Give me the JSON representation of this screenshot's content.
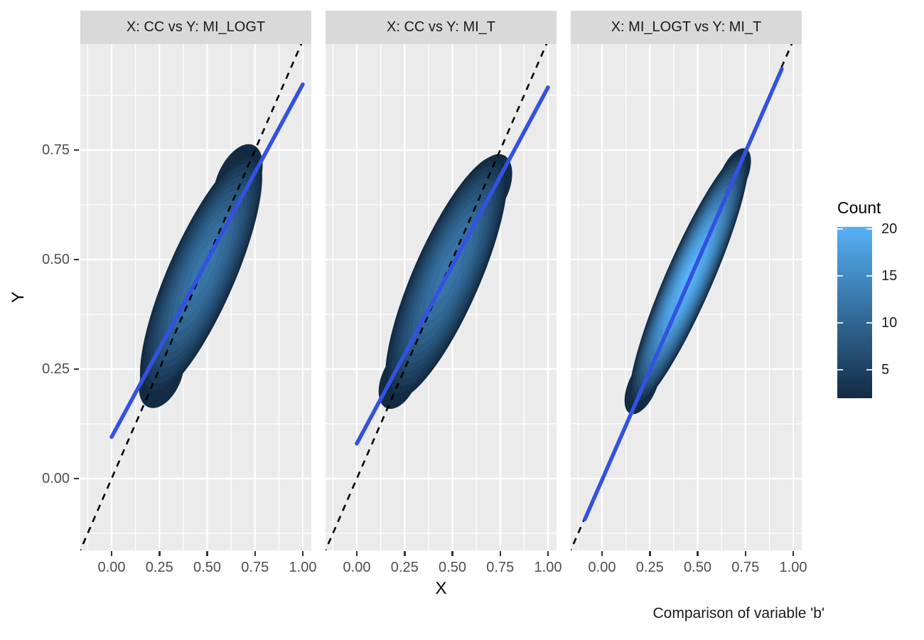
{
  "figure": {
    "background": "#FFFFFF"
  },
  "facets": [
    {
      "title": "X: CC vs Y: MI_LOGT"
    },
    {
      "title": "X: CC vs Y: MI_T"
    },
    {
      "title": "X: MI_LOGT vs Y: MI_T"
    }
  ],
  "axes": {
    "x_label": "X",
    "y_label": "Y",
    "x_tick_labels": [
      "0.00",
      "0.25",
      "0.50",
      "0.75",
      "1.00"
    ],
    "y_tick_labels": [
      "0.00",
      "0.25",
      "0.50",
      "0.75"
    ]
  },
  "legend": {
    "title": "Count",
    "tick_labels": [
      "5",
      "10",
      "15",
      "20"
    ]
  },
  "caption": "Comparison of variable 'b'",
  "style": {
    "panel_bg": "#EBEBEB",
    "strip_bg": "#D9D9D9",
    "grid_color": "#FFFFFF",
    "tick_text_color": "#4D4D4D",
    "smooth_line_color": "#3352E1",
    "reference_line_color": "#000000",
    "density_low_color": "#132B43",
    "density_high_color": "#56B1F7"
  },
  "chart_data": {
    "type": "density_contour",
    "description": "Faceted filled 2D kernel-density contours comparing imputation methods, with linear-fit (blue) and identity (dashed) lines",
    "x_axis": {
      "label": "X",
      "tick_values": [
        0,
        0.25,
        0.5,
        0.75,
        1.0
      ],
      "tick_labels": [
        "0.00",
        "0.25",
        "0.50",
        "0.75",
        "1.00"
      ],
      "range": [
        -0.164,
        1.045
      ]
    },
    "y_axis": {
      "label": "Y",
      "tick_values": [
        0,
        0.25,
        0.5,
        0.75
      ],
      "tick_labels": [
        "0.00",
        "0.25",
        "0.50",
        "0.75"
      ],
      "range": [
        -0.164,
        0.992
      ]
    },
    "colorbar": {
      "title": "Count",
      "tick_values": [
        5,
        10,
        15,
        20
      ],
      "tick_labels": [
        "5",
        "10",
        "15",
        "20"
      ],
      "range": [
        2,
        20.2
      ],
      "low_color": "#132B43",
      "high_color": "#56B1F7",
      "position": "right"
    },
    "identity_line": {
      "slope": 1,
      "intercept": 0,
      "style": "dashed",
      "color": "#000000"
    },
    "grid": true,
    "facets": [
      {
        "title": "X: CC vs Y: MI_LOGT",
        "smooth_line": {
          "x": [
            0.0,
            1.0
          ],
          "y": [
            0.095,
            0.9
          ]
        },
        "density": {
          "center_x": 0.468,
          "center_y": 0.464,
          "half_length_diagonal": 0.391,
          "half_width": 0.099,
          "inner_ratio": 0.25,
          "center_drift": 0.022,
          "contour_counts": [
            2,
            3,
            4,
            5,
            6,
            7,
            8,
            9,
            10,
            11,
            12
          ],
          "peak_count": 12,
          "bumps": [
            {
              "along": -0.32,
              "across": 0.012,
              "half_len": 0.1,
              "half_wid": 0.058
            },
            {
              "along": 0.3,
              "across": -0.012,
              "half_len": 0.115,
              "half_wid": 0.062
            }
          ]
        }
      },
      {
        "title": "X: CC vs Y: MI_T",
        "smooth_line": {
          "x": [
            0.0,
            1.0
          ],
          "y": [
            0.08,
            0.893
          ]
        },
        "density": {
          "center_x": 0.468,
          "center_y": 0.459,
          "half_length_diagonal": 0.391,
          "half_width": 0.099,
          "inner_ratio": 0.25,
          "center_drift": 0.022,
          "contour_counts": [
            2,
            3,
            4,
            5,
            6,
            7,
            8,
            9,
            10,
            11,
            12
          ],
          "peak_count": 12,
          "bumps": [
            {
              "along": -0.33,
              "across": -0.008,
              "half_len": 0.095,
              "half_wid": 0.052
            },
            {
              "along": 0.295,
              "across": 0.01,
              "half_len": 0.105,
              "half_wid": 0.058
            }
          ]
        }
      },
      {
        "title": "X: MI_LOGT vs Y: MI_T",
        "smooth_line": {
          "x": [
            -0.09,
            0.94
          ],
          "y": [
            -0.093,
            0.935
          ]
        },
        "density": {
          "center_x": 0.455,
          "center_y": 0.456,
          "half_length_diagonal": 0.4125,
          "half_width": 0.0694,
          "inner_ratio": 0.22,
          "center_drift": 0.004,
          "contour_counts": [
            2,
            3.5,
            5,
            6.5,
            8,
            9.5,
            11,
            12.5,
            14,
            15.5,
            17,
            18.5,
            20
          ],
          "peak_count": 20,
          "bumps": [
            {
              "along": -0.345,
              "across": 0.0,
              "half_len": 0.09,
              "half_wid": 0.042
            },
            {
              "along": 0.33,
              "across": 0.0,
              "half_len": 0.09,
              "half_wid": 0.04
            }
          ]
        }
      }
    ],
    "caption": "Comparison of variable 'b'"
  }
}
